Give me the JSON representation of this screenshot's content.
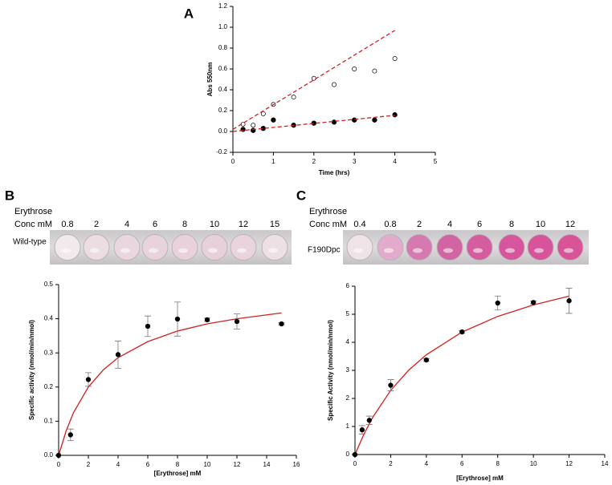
{
  "chart_data": [
    {
      "type": "scatter",
      "panel_label": "A",
      "xlabel": "Time (hrs)",
      "ylabel": "Abs 550nm",
      "xlim": [
        0,
        5
      ],
      "xticks": [
        0,
        1,
        2,
        3,
        4,
        5
      ],
      "ylim": [
        -0.2,
        1.2
      ],
      "yticks": [
        {
          "value": -0.2,
          "label": "-0.2"
        },
        {
          "value": 0,
          "label": "0.0"
        },
        0.2,
        0.4,
        0.6,
        0.8,
        {
          "value": 1,
          "label": "1.0"
        },
        1.2
      ],
      "series": [
        {
          "kind": "points",
          "marker": "open",
          "color": "#000000",
          "x": [
            0.25,
            0.5,
            0.75,
            1,
            1.5,
            2,
            2.5,
            3,
            3.5,
            4
          ],
          "values": [
            0.07,
            0.06,
            0.17,
            0.26,
            0.33,
            0.51,
            0.45,
            0.6,
            0.58,
            0.7
          ]
        },
        {
          "kind": "points",
          "marker": "filled",
          "color": "#000000",
          "x": [
            0.25,
            0.5,
            0.75,
            1,
            1.5,
            2,
            2.5,
            3,
            3.5,
            4
          ],
          "values": [
            0.02,
            0.01,
            0.03,
            0.11,
            0.06,
            0.08,
            0.09,
            0.11,
            0.11,
            0.16
          ]
        },
        {
          "kind": "line",
          "dashed": true,
          "color": "#d42020",
          "x": [
            0,
            4
          ],
          "values": [
            0.02,
            0.97
          ]
        },
        {
          "kind": "line",
          "dashed": true,
          "color": "#d42020",
          "x": [
            0,
            4
          ],
          "values": [
            0.0,
            0.155
          ]
        }
      ]
    },
    {
      "type": "scatter",
      "panel_label": "B",
      "xlabel": "[Erythrose] mM",
      "ylabel": "Specific activity (nmol/min/nmol)",
      "xlim": [
        0,
        16
      ],
      "xticks": [
        0,
        2,
        4,
        6,
        8,
        10,
        12,
        14,
        16
      ],
      "ylim": [
        0,
        0.5
      ],
      "yticks": [
        {
          "value": 0,
          "label": "0.0"
        },
        0.1,
        0.2,
        0.3,
        0.4,
        0.5
      ],
      "series": [
        {
          "kind": "line",
          "dashed": false,
          "color": "#d42020",
          "x": [
            0,
            0.5,
            1,
            2,
            3,
            4,
            6,
            8,
            10,
            12,
            15
          ],
          "values": [
            0,
            0.071,
            0.125,
            0.2,
            0.25,
            0.286,
            0.333,
            0.364,
            0.385,
            0.4,
            0.417
          ]
        },
        {
          "kind": "points",
          "marker": "filled",
          "color": "#000000",
          "x": [
            0,
            0.8,
            2,
            4,
            6,
            8,
            10,
            12,
            15
          ],
          "values": [
            0,
            0.06,
            0.222,
            0.295,
            0.378,
            0.399,
            0.397,
            0.392,
            0.385
          ],
          "errors": [
            null,
            0.017,
            0.02,
            0.04,
            0.03,
            0.05,
            0.005,
            0.022,
            0.003
          ]
        }
      ],
      "strip": {
        "title": "Erythrose",
        "subtitle": "Conc mM",
        "sample": "Wild-type",
        "labels": [
          0.8,
          2,
          4,
          6,
          8,
          10,
          12,
          15
        ],
        "colors": [
          "#f1e9ec",
          "#ecdde3",
          "#ead6df",
          "#e8d2dc",
          "#e9d1dc",
          "#e8d0db",
          "#e9d3dd",
          "#ede0e5"
        ]
      }
    },
    {
      "type": "scatter",
      "panel_label": "C",
      "xlabel": "[Erythrose] mM",
      "ylabel": "Specific Activity (nmol/min/nmol)",
      "xlim": [
        0,
        14
      ],
      "xticks": [
        0,
        2,
        4,
        6,
        8,
        10,
        12,
        14
      ],
      "ylim": [
        0,
        6
      ],
      "yticks": [
        0,
        1,
        2,
        3,
        4,
        5,
        6
      ],
      "series": [
        {
          "kind": "line",
          "dashed": false,
          "color": "#d42020",
          "x": [
            0,
            0.5,
            1,
            2,
            3,
            4,
            6,
            8,
            10,
            12
          ],
          "values": [
            0,
            0.727,
            1.333,
            2.286,
            3.0,
            3.556,
            4.364,
            4.923,
            5.333,
            5.647
          ]
        },
        {
          "kind": "points",
          "marker": "filled",
          "color": "#000000",
          "x": [
            0,
            0.4,
            0.8,
            2,
            4,
            6,
            8,
            10,
            12
          ],
          "values": [
            0,
            0.88,
            1.22,
            2.47,
            3.37,
            4.37,
            5.4,
            5.42,
            5.48
          ],
          "errors": [
            null,
            0.15,
            0.15,
            0.2,
            0.05,
            0.05,
            0.25,
            0.05,
            0.45
          ]
        }
      ],
      "strip": {
        "title": "Erythrose",
        "subtitle": "Conc mM",
        "sample": "F190Dpc",
        "labels": [
          0.4,
          0.8,
          2,
          4,
          6,
          8,
          10,
          12
        ],
        "colors": [
          "#efe3e8",
          "#e2aacb",
          "#d679b0",
          "#d264a3",
          "#d45da0",
          "#d6559c",
          "#d7539a",
          "#d85496"
        ]
      }
    }
  ]
}
